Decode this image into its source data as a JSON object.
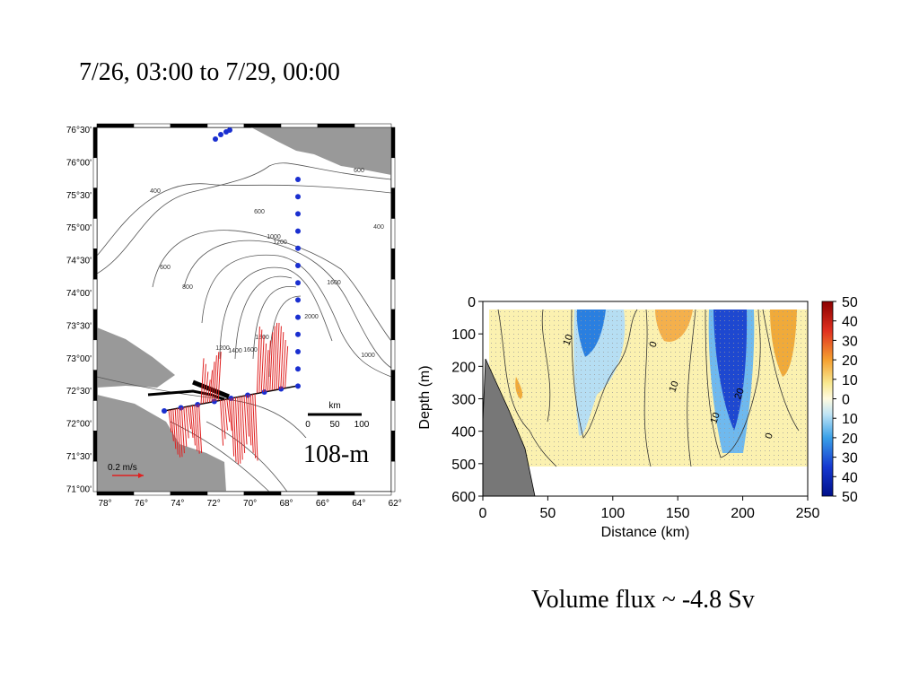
{
  "slide": {
    "title": "7/26, 03:00 to 7/29, 00:00",
    "footer": "Volume flux ~ -4.8 Sv"
  },
  "map": {
    "lat_labels": [
      "76°30'",
      "76°00'",
      "75°30'",
      "75°00'",
      "74°30'",
      "74°00'",
      "73°30'",
      "73°00'",
      "72°30'",
      "72°00'",
      "71°30'",
      "71°00'"
    ],
    "lon_labels": [
      "78°",
      "76°",
      "74°",
      "72°",
      "70°",
      "68°",
      "66°",
      "64°",
      "62°"
    ],
    "contour_labels": [
      "400",
      "600",
      "600",
      "800",
      "1000",
      "1200",
      "1600",
      "1000",
      "1200",
      "1400",
      "1600",
      "1800",
      "2000",
      "400",
      "600"
    ],
    "scale_title": "km",
    "scale_ticks": [
      "0",
      "50",
      "100"
    ],
    "arrow_label": "0.2 m/s",
    "depth_label": "108-m"
  },
  "section": {
    "ylabel": "Depth (m)",
    "xlabel": "Distance (km)",
    "ylim": [
      0,
      600
    ],
    "yticks": [
      0,
      100,
      200,
      300,
      400,
      500,
      600
    ],
    "xlim": [
      0,
      250
    ],
    "xticks": [
      0,
      50,
      100,
      150,
      200,
      250
    ],
    "colorbar_ticks": [
      50,
      40,
      30,
      20,
      10,
      0,
      {
        "value": -10,
        "label": "10"
      },
      {
        "value": -20,
        "label": "20"
      },
      {
        "value": -30,
        "label": "30"
      },
      {
        "value": -40,
        "label": "40"
      },
      {
        "value": -50,
        "label": "50"
      }
    ],
    "contour_labels": [
      "10",
      "0",
      "10",
      "20",
      "10",
      "0"
    ]
  }
}
